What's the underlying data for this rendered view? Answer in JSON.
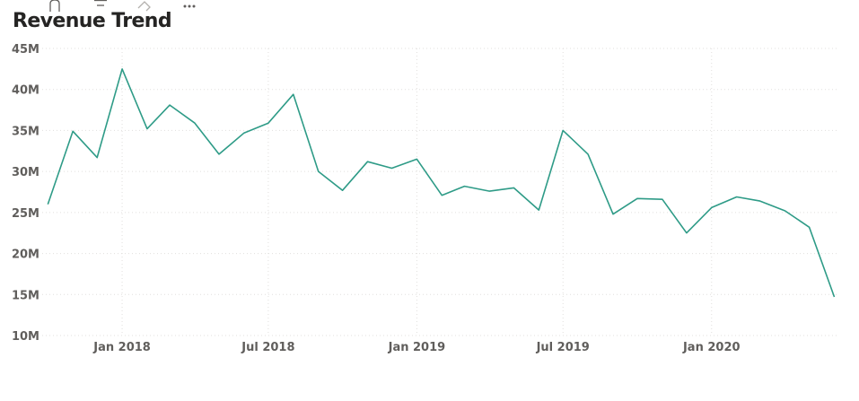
{
  "visual": {
    "header_icons": [
      "focus-mode-icon",
      "filter-icon",
      "erase-icon",
      "more-options-icon"
    ]
  },
  "chart_data": {
    "type": "line",
    "title": "Revenue Trend",
    "xlabel": "",
    "ylabel": "",
    "color": "#2e9b87",
    "grid": true,
    "legend": "none",
    "ylim": [
      10,
      45
    ],
    "yticks": [
      10,
      15,
      20,
      25,
      30,
      35,
      40,
      45
    ],
    "ytick_labels": [
      "10M",
      "15M",
      "20M",
      "25M",
      "30M",
      "35M",
      "40M",
      "45M"
    ],
    "xlim": [
      "2017-09-24",
      "2020-06-06"
    ],
    "xticks": [
      "2018-01-01",
      "2018-07-01",
      "2019-01-01",
      "2019-07-01",
      "2020-01-01"
    ],
    "xtick_labels": [
      "Jan 2018",
      "Jul 2018",
      "Jan 2019",
      "Jul 2019",
      "Jan 2020"
    ],
    "x": [
      "2017-10-01",
      "2017-11-01",
      "2017-12-01",
      "2018-01-01",
      "2018-02-01",
      "2018-03-01",
      "2018-04-01",
      "2018-05-01",
      "2018-06-01",
      "2018-07-01",
      "2018-08-01",
      "2018-09-01",
      "2018-10-01",
      "2018-11-01",
      "2018-12-01",
      "2019-01-01",
      "2019-02-01",
      "2019-03-01",
      "2019-04-01",
      "2019-05-01",
      "2019-06-01",
      "2019-07-01",
      "2019-08-01",
      "2019-09-01",
      "2019-10-01",
      "2019-11-01",
      "2019-12-01",
      "2020-01-01",
      "2020-02-01",
      "2020-03-01",
      "2020-04-01",
      "2020-05-01",
      "2020-06-01"
    ],
    "series": [
      {
        "values": [
          26.0,
          34.9,
          31.7,
          42.5,
          35.2,
          38.1,
          35.9,
          32.1,
          34.7,
          35.9,
          39.4,
          30.0,
          27.7,
          31.2,
          30.4,
          31.5,
          27.1,
          28.2,
          27.6,
          28.0,
          25.3,
          35.0,
          32.1,
          24.8,
          26.7,
          26.6,
          22.5,
          25.6,
          26.9,
          26.4,
          25.2,
          23.2,
          14.7
        ]
      }
    ]
  }
}
